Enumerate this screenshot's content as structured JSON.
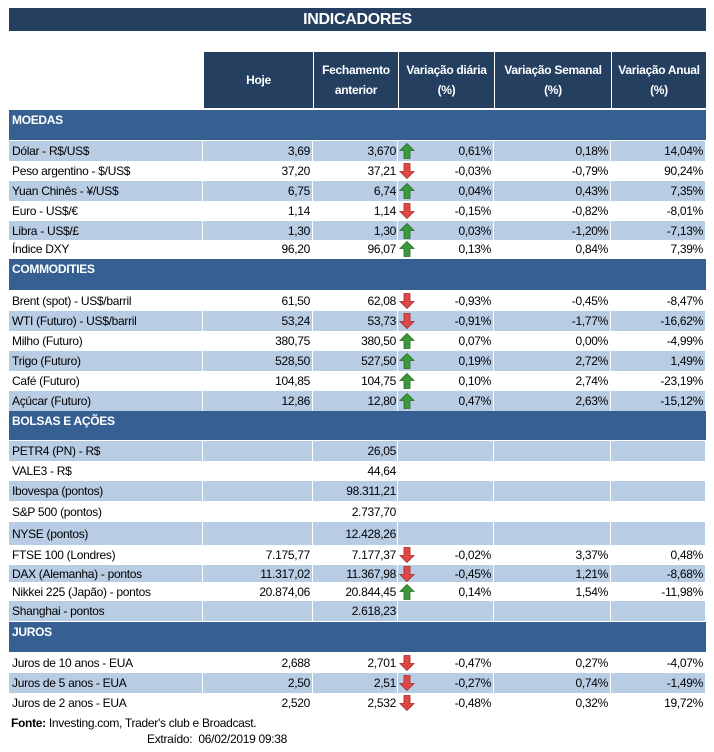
{
  "title": "INDICADORES",
  "columns": [
    "Hoje",
    "Fechamento anterior",
    "Variação diária (%)",
    "Variação Semanal (%)",
    "Variação Anual (%)"
  ],
  "colors": {
    "header": "#243f60",
    "section": "#366092",
    "stripe": "#b8cce4",
    "up_arrow": "#3a9a3a",
    "down_arrow": "#e04848"
  },
  "sections": [
    {
      "name": "MOEDAS",
      "rows": [
        {
          "label": "Dólar - R$/US$",
          "hoje": "3,69",
          "fech": "3,670",
          "trend": "up",
          "diaria": "0,61%",
          "semanal": "0,18%",
          "anual": "14,04%"
        },
        {
          "label": "Peso argentino - $/US$",
          "hoje": "37,20",
          "fech": "37,21",
          "trend": "down",
          "diaria": "-0,03%",
          "semanal": "-0,79%",
          "anual": "90,24%"
        },
        {
          "label": "Yuan Chinês - ¥/US$",
          "hoje": "6,75",
          "fech": "6,74",
          "trend": "up",
          "diaria": "0,04%",
          "semanal": "0,43%",
          "anual": "7,35%"
        },
        {
          "label": "Euro - US$/€",
          "hoje": "1,14",
          "fech": "1,14",
          "trend": "down",
          "diaria": "-0,15%",
          "semanal": "-0,82%",
          "anual": "-8,01%"
        },
        {
          "label": "Libra - US$/£",
          "hoje": "1,30",
          "fech": "1,30",
          "trend": "up",
          "diaria": "0,03%",
          "semanal": "-1,20%",
          "anual": "-7,13%"
        },
        {
          "label": "Índice DXY",
          "hoje": "96,20",
          "fech": "96,07",
          "trend": "up",
          "diaria": "0,13%",
          "semanal": "0,84%",
          "anual": "7,39%"
        }
      ]
    },
    {
      "name": "COMMODITIES",
      "rows": [
        {
          "label": "Brent (spot) - US$/barril",
          "hoje": "61,50",
          "fech": "62,08",
          "trend": "down",
          "diaria": "-0,93%",
          "semanal": "-0,45%",
          "anual": "-8,47%"
        },
        {
          "label": "WTI (Futuro) - US$/barril",
          "hoje": "53,24",
          "fech": "53,73",
          "trend": "down",
          "diaria": "-0,91%",
          "semanal": "-1,77%",
          "anual": "-16,62%"
        },
        {
          "label": "Milho (Futuro)",
          "hoje": "380,75",
          "fech": "380,50",
          "trend": "up",
          "diaria": "0,07%",
          "semanal": "0,00%",
          "anual": "-4,99%"
        },
        {
          "label": "Trigo (Futuro)",
          "hoje": "528,50",
          "fech": "527,50",
          "trend": "up",
          "diaria": "0,19%",
          "semanal": "2,72%",
          "anual": "1,49%"
        },
        {
          "label": "Café (Futuro)",
          "hoje": "104,85",
          "fech": "104,75",
          "trend": "up",
          "diaria": "0,10%",
          "semanal": "2,74%",
          "anual": "-23,19%"
        },
        {
          "label": "Açúcar (Futuro)",
          "hoje": "12,86",
          "fech": "12,80",
          "trend": "up",
          "diaria": "0,47%",
          "semanal": "2,63%",
          "anual": "-15,12%"
        }
      ]
    },
    {
      "name": "BOLSAS E AÇÕES",
      "rows": [
        {
          "label": "PETR4 (PN) - R$",
          "hoje": "",
          "fech": "26,05",
          "trend": "",
          "diaria": "",
          "semanal": "",
          "anual": ""
        },
        {
          "label": "VALE3 - R$",
          "hoje": "",
          "fech": "44,64",
          "trend": "",
          "diaria": "",
          "semanal": "",
          "anual": ""
        },
        {
          "label": "Ibovespa (pontos)",
          "hoje": "",
          "fech": "98.311,21",
          "trend": "",
          "diaria": "",
          "semanal": "",
          "anual": ""
        },
        {
          "label": "S&P 500 (pontos)",
          "hoje": "",
          "fech": "2.737,70",
          "trend": "",
          "diaria": "",
          "semanal": "",
          "anual": ""
        },
        {
          "label": "NYSE (pontos)",
          "hoje": "",
          "fech": "12.428,26",
          "trend": "",
          "diaria": "",
          "semanal": "",
          "anual": ""
        },
        {
          "label": "FTSE 100 (Londres)",
          "hoje": "7.175,77",
          "fech": "7.177,37",
          "trend": "down",
          "diaria": "-0,02%",
          "semanal": "3,37%",
          "anual": "0,48%"
        },
        {
          "label": "DAX (Alemanha) - pontos",
          "hoje": "11.317,02",
          "fech": "11.367,98",
          "trend": "down",
          "diaria": "-0,45%",
          "semanal": "1,21%",
          "anual": "-8,68%"
        },
        {
          "label": "Nikkei 225 (Japão) - pontos",
          "hoje": "20.874,06",
          "fech": "20.844,45",
          "trend": "up",
          "diaria": "0,14%",
          "semanal": "1,54%",
          "anual": "-11,98%"
        },
        {
          "label": "Shanghai - pontos",
          "hoje": "",
          "fech": "2.618,23",
          "trend": "",
          "diaria": "",
          "semanal": "",
          "anual": ""
        }
      ]
    },
    {
      "name": "JUROS",
      "rows": [
        {
          "label": "Juros de 10 anos - EUA",
          "hoje": "2,688",
          "fech": "2,701",
          "trend": "down",
          "diaria": "-0,47%",
          "semanal": "0,27%",
          "anual": "-4,07%"
        },
        {
          "label": "Juros de 5 anos - EUA",
          "hoje": "2,50",
          "fech": "2,51",
          "trend": "down",
          "diaria": "-0,27%",
          "semanal": "0,74%",
          "anual": "-1,49%"
        },
        {
          "label": "Juros de 2 anos - EUA",
          "hoje": "2,520",
          "fech": "2,532",
          "trend": "down",
          "diaria": "-0,48%",
          "semanal": "0,32%",
          "anual": "19,72%"
        }
      ]
    }
  ],
  "footer": {
    "source_label": "Fonte:",
    "source_text": " Investing.com, Trader's club e Broadcast.",
    "extracted_label": "Extraído:",
    "extracted_value": "06/02/2019 09:38"
  }
}
